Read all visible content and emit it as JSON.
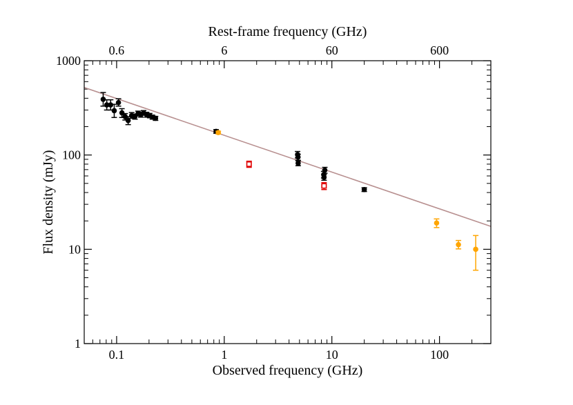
{
  "chart_data": {
    "type": "scatter",
    "xlabel": "Observed frequency (GHz)",
    "x2label": "Rest-frame frequency (GHz)",
    "ylabel": "Flux density (mJy)",
    "xscale": "log",
    "yscale": "log",
    "xlim": [
      0.05,
      300
    ],
    "ylim": [
      1,
      1000
    ],
    "x_ticks": [
      0.1,
      1,
      10,
      100
    ],
    "x_tick_labels": [
      "0.1",
      "1",
      "10",
      "100"
    ],
    "y_ticks": [
      1,
      10,
      100,
      1000
    ],
    "y_tick_labels": [
      "1",
      "10",
      "100",
      "1000"
    ],
    "x2_ticks_observed_ghz": [
      0.1,
      1,
      10,
      100
    ],
    "x2_tick_labels": [
      "0.6",
      "6",
      "60",
      "600"
    ],
    "fit_line": {
      "x": [
        0.05,
        300
      ],
      "y": [
        520,
        17.5
      ],
      "color": "#b89090"
    },
    "series": [
      {
        "name": "black",
        "marker": "circle",
        "color": "#000000",
        "points": [
          {
            "x": 0.075,
            "y": 390,
            "yerr": [
              330,
              460
            ]
          },
          {
            "x": 0.081,
            "y": 340,
            "yerr": [
              300,
              385
            ]
          },
          {
            "x": 0.088,
            "y": 340,
            "yerr": [
              300,
              385
            ]
          },
          {
            "x": 0.095,
            "y": 295,
            "yerr": [
              250,
              345
            ]
          },
          {
            "x": 0.104,
            "y": 360,
            "yerr": [
              330,
              395
            ]
          },
          {
            "x": 0.112,
            "y": 280,
            "yerr": [
              250,
              310
            ]
          },
          {
            "x": 0.12,
            "y": 255,
            "yerr": [
              235,
              275
            ]
          },
          {
            "x": 0.128,
            "y": 232,
            "yerr": [
              210,
              255
            ]
          },
          {
            "x": 0.138,
            "y": 262,
            "yerr": [
              245,
              282
            ]
          },
          {
            "x": 0.148,
            "y": 256,
            "yerr": [
              240,
              272
            ]
          },
          {
            "x": 0.158,
            "y": 275,
            "yerr": [
              260,
              292
            ]
          },
          {
            "x": 0.168,
            "y": 268,
            "yerr": [
              252,
              284
            ]
          },
          {
            "x": 0.178,
            "y": 280,
            "yerr": [
              264,
              296
            ]
          },
          {
            "x": 0.19,
            "y": 268,
            "yerr": [
              252,
              284
            ]
          },
          {
            "x": 0.203,
            "y": 262,
            "yerr": [
              248,
              276
            ]
          },
          {
            "x": 0.215,
            "y": 252,
            "yerr": [
              240,
              265
            ]
          },
          {
            "x": 0.23,
            "y": 245,
            "yerr": [
              233,
              257
            ]
          },
          {
            "x": 0.84,
            "y": 178,
            "yerr": [
              170,
              186
            ]
          },
          {
            "x": 4.8,
            "y": 101,
            "yerr": [
              93,
              109
            ]
          },
          {
            "x": 4.85,
            "y": 95,
            "yerr": [
              88,
              102
            ]
          },
          {
            "x": 4.86,
            "y": 82,
            "yerr": [
              77,
              87
            ]
          },
          {
            "x": 8.4,
            "y": 62,
            "yerr": [
              57,
              67
            ]
          },
          {
            "x": 8.46,
            "y": 58,
            "yerr": [
              54,
              62
            ]
          },
          {
            "x": 8.6,
            "y": 69,
            "yerr": [
              64,
              74
            ]
          },
          {
            "x": 20.0,
            "y": 43,
            "yerr": [
              41,
              45
            ]
          }
        ]
      },
      {
        "name": "orange",
        "marker": "circle",
        "color": "#ffa500",
        "points": [
          {
            "x": 0.88,
            "y": 173,
            "yerr": [
              167,
              179
            ]
          },
          {
            "x": 94,
            "y": 19,
            "yerr": [
              17,
              21
            ]
          },
          {
            "x": 150,
            "y": 11.2,
            "yerr": [
              10.1,
              12.4
            ]
          },
          {
            "x": 217,
            "y": 10,
            "yerr": [
              6,
              14
            ]
          }
        ]
      },
      {
        "name": "red",
        "marker": "square-open",
        "color": "#e00000",
        "points": [
          {
            "x": 1.7,
            "y": 80,
            "yerr": [
              74,
              86
            ]
          },
          {
            "x": 8.46,
            "y": 47,
            "yerr": [
              43,
              51
            ]
          }
        ]
      }
    ]
  }
}
